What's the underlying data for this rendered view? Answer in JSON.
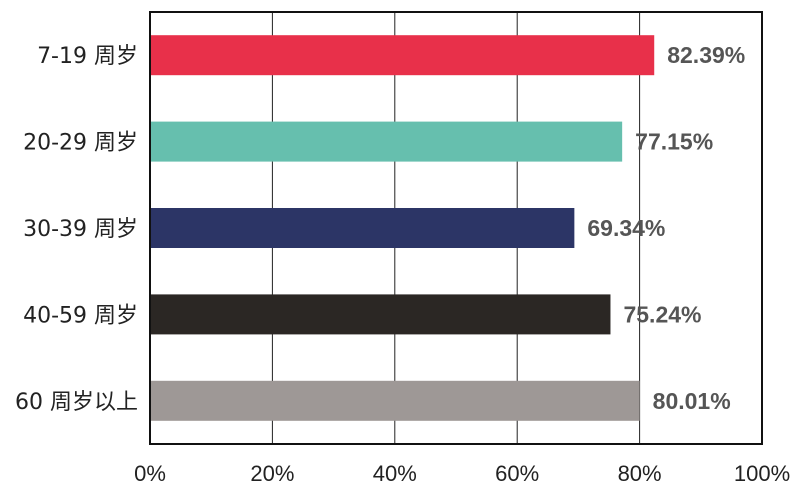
{
  "chart_data": {
    "type": "bar",
    "orientation": "horizontal",
    "categories": [
      "7-19 周岁",
      "20-29 周岁",
      "30-39 周岁",
      "40-59 周岁",
      "60 周岁以上"
    ],
    "values": [
      82.39,
      77.15,
      69.34,
      75.24,
      80.01
    ],
    "value_labels": [
      "82.39%",
      "77.15%",
      "69.34%",
      "75.24%",
      "80.01%"
    ],
    "colors": [
      "#e8304a",
      "#66bfae",
      "#2c3566",
      "#2b2724",
      "#9e9896"
    ],
    "xlim": [
      0,
      100
    ],
    "xticks": [
      0,
      20,
      40,
      60,
      80,
      100
    ],
    "xtick_labels": [
      "0%",
      "20%",
      "40%",
      "60%",
      "80%",
      "100%"
    ],
    "grid": "vertical",
    "legend": "none"
  }
}
